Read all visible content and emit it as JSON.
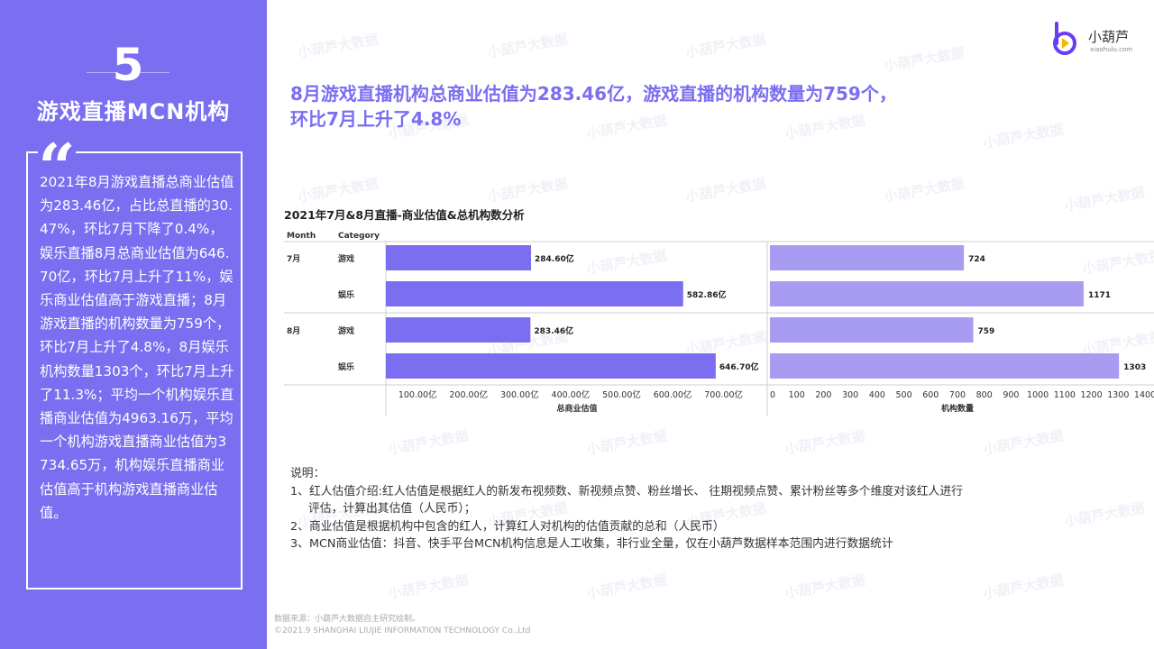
{
  "sidebar": {
    "section_number": "5",
    "section_title": "游戏直播MCN机构",
    "quote_mark": "“",
    "quote_text": "2021年8月游戏直播总商业估值为283.46亿，占比总直播的30.47%，环比7月下降了0.4%，娱乐直播8月总商业估值为646.70亿，环比7月上升了11%，娱乐商业估值高于游戏直播；8月游戏直播的机构数量为759个，环比7月上升了4.8%，8月娱乐机构数量1303个，环比7月上升了11.3%；平均一个机构娱乐直播商业估值为4963.16万，平均一个机构游戏直播商业估值为3734.65万，机构娱乐直播商业估值高于机构游戏直播商业估值。"
  },
  "logo": {
    "name": "小葫芦",
    "sub": "xiaohulu.com",
    "icon": "gourd-play-icon"
  },
  "headline": {
    "line1": "8月游戏直播机构总商业估值为283.46亿，游戏直播的机构数量为759个，",
    "line2": "环比7月上升了4.8%"
  },
  "watermark": "小葫芦大数据",
  "chart_data": {
    "type": "bar",
    "title": "2021年7月&8月直播-商业估值&总机构数分析",
    "row_headers": [
      "Month",
      "Category"
    ],
    "months": [
      {
        "month": "7月",
        "rows": [
          {
            "category": "游戏",
            "valuation": 284.6,
            "valuation_label": "284.60亿",
            "orgs": 724
          },
          {
            "category": "娱乐",
            "valuation": 582.86,
            "valuation_label": "582.86亿",
            "orgs": 1171
          }
        ]
      },
      {
        "month": "8月",
        "rows": [
          {
            "category": "游戏",
            "valuation": 283.46,
            "valuation_label": "283.46亿",
            "orgs": 759
          },
          {
            "category": "娱乐",
            "valuation": 646.7,
            "valuation_label": "646.70亿",
            "orgs": 1303
          }
        ]
      }
    ],
    "panels": [
      {
        "key": "valuation",
        "xlabel": "总商业估值",
        "xlim": [
          0,
          730
        ],
        "ticks": [
          100,
          200,
          300,
          400,
          500,
          600,
          700
        ],
        "tick_labels": [
          "100.00亿",
          "200.00亿",
          "300.00亿",
          "400.00亿",
          "500.00亿",
          "600.00亿",
          "700.00亿"
        ]
      },
      {
        "key": "orgs",
        "xlabel": "机构数量",
        "xlim": [
          0,
          1400
        ],
        "ticks": [
          0,
          100,
          200,
          300,
          400,
          500,
          600,
          700,
          800,
          900,
          1000,
          1100,
          1200,
          1300,
          1400
        ],
        "tick_labels": [
          "0",
          "100",
          "200",
          "300",
          "400",
          "500",
          "600",
          "700",
          "800",
          "900",
          "1000",
          "1100",
          "1200",
          "1300",
          "1400"
        ]
      }
    ],
    "colors": {
      "valuation": "#7b6ef0",
      "orgs": "#a79cf2"
    },
    "grid": false,
    "legend": "none"
  },
  "notes": {
    "title": "说明：",
    "line1": "1、红人估值介绍:红人估值是根据红人的新发布视频数、新视频点赞、粉丝增长、 往期视频点赞、累计粉丝等多个维度对该红人进行",
    "line1b": "评估，计算出其估值（人民币）；",
    "line2": "2、商业估值是根据机构中包含的红人，计算红人对机构的估值贡献的总和（人民币）",
    "line3": "3、MCN商业估值：抖音、快手平台MCN机构信息是人工收集，非行业全量，仅在小葫芦数据样本范围内进行数据统计"
  },
  "footer": {
    "source": "数据来源：小葫芦大数据自主研究绘制。",
    "copyright": "©2021.9 SHANGHAI LIUJIE INFORMATION  TECHNOLOGY Co.,Ltd"
  }
}
